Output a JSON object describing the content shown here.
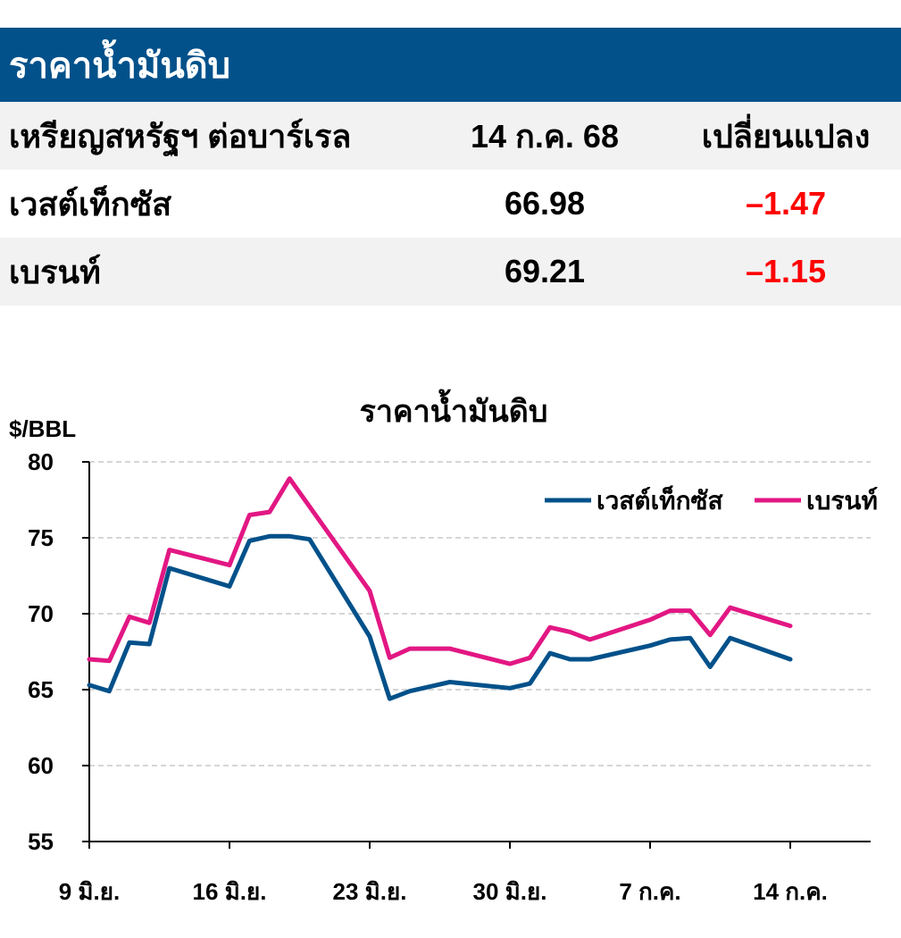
{
  "header": {
    "title": "ราคาน้ำมันดิบ"
  },
  "table": {
    "columns": [
      "เหรียญสหรัฐฯ ต่อบาร์เรล",
      "14 ก.ค. 68",
      "เปลี่ยนแปลง"
    ],
    "rows": [
      {
        "name": "เวสต์เท็กซัส",
        "value": "66.98",
        "change": "–1.47"
      },
      {
        "name": "เบรนท์",
        "value": "69.21",
        "change": "–1.15"
      }
    ],
    "negative_color": "#ff0000"
  },
  "chart_data": {
    "type": "line",
    "title": "ราคาน้ำมันดิบ",
    "ylabel": "$/BBL",
    "ylim": [
      55,
      80
    ],
    "yticks": [
      "55",
      "60",
      "65",
      "70",
      "75",
      "80"
    ],
    "grid": true,
    "legend_position": "top-right",
    "x_tick_labels": [
      "9 มิ.ย.",
      "16 มิ.ย.",
      "23 มิ.ย.",
      "30 มิ.ย.",
      "7 ก.ค.",
      "14 ก.ค."
    ],
    "x_day_ticks": [
      0,
      7,
      14,
      21,
      28,
      35
    ],
    "x_range": [
      0,
      39
    ],
    "series": [
      {
        "name": "เวสต์เท็กซัส",
        "color": "#02518a",
        "points": [
          [
            0,
            65.3
          ],
          [
            1,
            64.9
          ],
          [
            2,
            68.1
          ],
          [
            3,
            68.0
          ],
          [
            4,
            73.0
          ],
          [
            7,
            71.8
          ],
          [
            8,
            74.8
          ],
          [
            9,
            75.1
          ],
          [
            10,
            75.1
          ],
          [
            11,
            74.9
          ],
          [
            14,
            68.5
          ],
          [
            15,
            64.4
          ],
          [
            16,
            64.9
          ],
          [
            18,
            65.5
          ],
          [
            21,
            65.1
          ],
          [
            22,
            65.4
          ],
          [
            23,
            67.4
          ],
          [
            24,
            67.0
          ],
          [
            25,
            67.0
          ],
          [
            28,
            67.9
          ],
          [
            29,
            68.3
          ],
          [
            30,
            68.4
          ],
          [
            31,
            66.5
          ],
          [
            32,
            68.4
          ],
          [
            35,
            67.0
          ]
        ]
      },
      {
        "name": "เบรนท์",
        "color": "#e21783",
        "points": [
          [
            0,
            67.0
          ],
          [
            1,
            66.9
          ],
          [
            2,
            69.8
          ],
          [
            3,
            69.4
          ],
          [
            4,
            74.2
          ],
          [
            7,
            73.2
          ],
          [
            8,
            76.5
          ],
          [
            9,
            76.7
          ],
          [
            10,
            78.9
          ],
          [
            14,
            71.5
          ],
          [
            15,
            67.1
          ],
          [
            16,
            67.7
          ],
          [
            18,
            67.7
          ],
          [
            21,
            66.7
          ],
          [
            22,
            67.1
          ],
          [
            23,
            69.1
          ],
          [
            24,
            68.8
          ],
          [
            25,
            68.3
          ],
          [
            28,
            69.6
          ],
          [
            29,
            70.2
          ],
          [
            30,
            70.2
          ],
          [
            31,
            68.6
          ],
          [
            32,
            70.4
          ],
          [
            35,
            69.2
          ]
        ]
      }
    ]
  }
}
